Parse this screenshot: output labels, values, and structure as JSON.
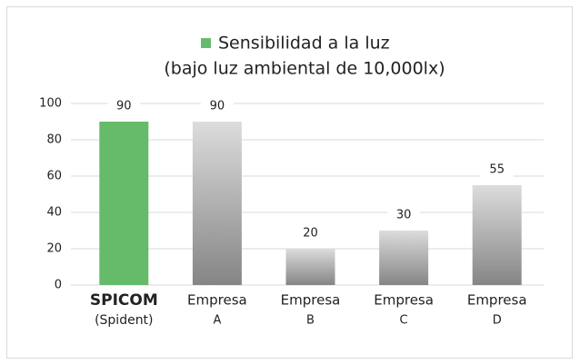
{
  "chart_data": {
    "type": "bar",
    "title": "Sensibilidad a la luz",
    "subtitle": "(bajo luz ambiental de 10,000lx)",
    "categories": [
      [
        "SPICOM",
        "(Spident)"
      ],
      [
        "Empresa",
        "A"
      ],
      [
        "Empresa",
        "B"
      ],
      [
        "Empresa",
        "C"
      ],
      [
        "Empresa",
        "D"
      ]
    ],
    "values": [
      90,
      90,
      20,
      30,
      55
    ],
    "colors": [
      "#66bb6a",
      "#858585",
      "#858585",
      "#858585",
      "#858585"
    ],
    "legend_color": "#66bb6a",
    "ylim": [
      0,
      100
    ],
    "yticks": [
      0,
      20,
      40,
      60,
      80,
      100
    ],
    "grid": true
  }
}
